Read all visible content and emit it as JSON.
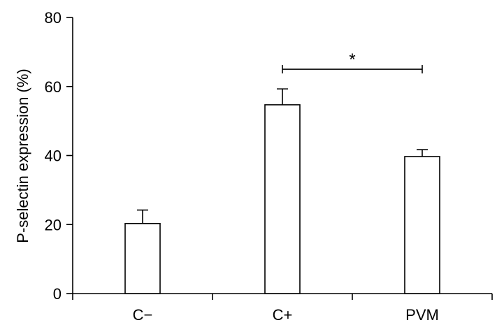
{
  "chart_data": {
    "type": "bar",
    "title": "",
    "xlabel": "",
    "ylabel": "P-selectin expression (%)",
    "ylim": [
      0,
      80
    ],
    "yticks": [
      0,
      20,
      40,
      60,
      80
    ],
    "categories": [
      "C−",
      "C+",
      "PVM"
    ],
    "values": [
      20.3,
      54.7,
      39.7
    ],
    "errors": [
      3.9,
      4.6,
      2.0
    ],
    "bar_color": "#ffffff",
    "edge_color": "#000000",
    "grid": false,
    "legend": "none",
    "annotations": [
      {
        "type": "significance",
        "from": "C+",
        "to": "PVM",
        "label": "*",
        "y": 65
      }
    ]
  }
}
